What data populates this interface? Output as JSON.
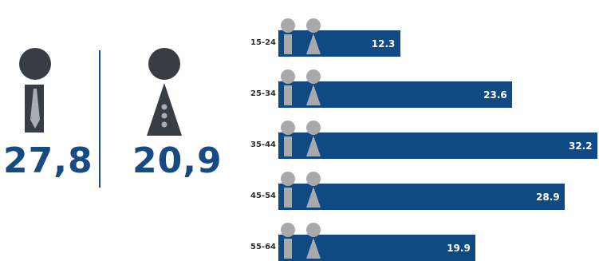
{
  "colors": {
    "dark": "#383c44",
    "accent": "#154a82",
    "bar": "#104a85",
    "icon_gray": "#a9a9a9",
    "tie": "#a9adb3"
  },
  "summary": {
    "male_value": "27,8",
    "female_value": "20,9",
    "male_icon": "man-tie-icon",
    "female_icon": "woman-buttons-icon"
  },
  "chart_data": {
    "type": "bar",
    "orientation": "horizontal",
    "categories": [
      "15-24",
      "25-34",
      "35-44",
      "45-54",
      "55-64"
    ],
    "values": [
      12.3,
      23.6,
      32.2,
      28.9,
      19.9
    ],
    "value_labels": [
      "12.3",
      "23.6",
      "32.2",
      "28.9",
      "19.9"
    ],
    "xlim": [
      0,
      32.2
    ],
    "grid": false,
    "legend": "none"
  }
}
